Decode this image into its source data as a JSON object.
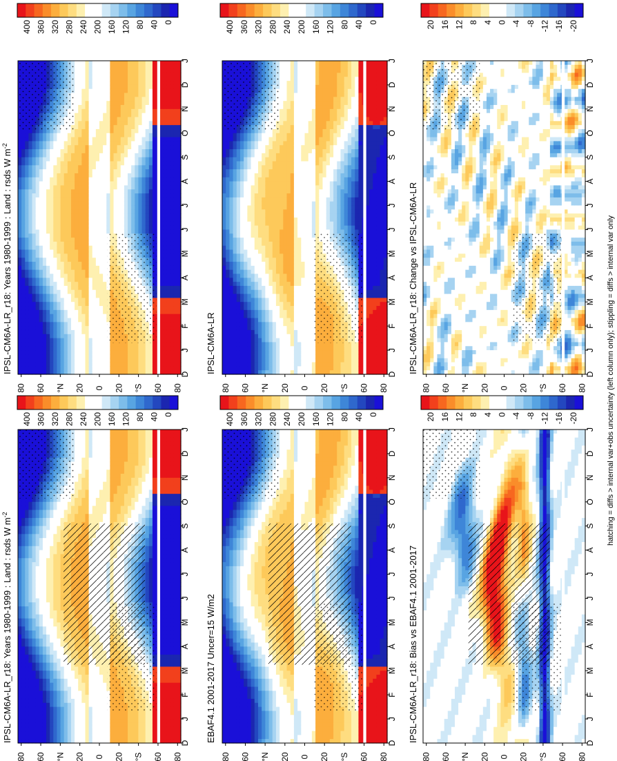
{
  "figure": {
    "footnote": "hatching = diffs > internal var+obs uncertainty (left column only); stippling = diffs > internal var only"
  },
  "chart_data": [
    {
      "type": "heatmap",
      "id": "model-left",
      "title": "IPSL-CM6A-LR_r18: Years 1980-1999 : Land : rsds W m",
      "title_superscript": "-2",
      "x": [
        "D",
        "J",
        "F",
        "M",
        "A",
        "M",
        "J",
        "J",
        "A",
        "S",
        "O",
        "N",
        "D",
        "J"
      ],
      "y": [
        "80",
        "60",
        "°N",
        "20",
        "0",
        "20",
        "°S",
        "60",
        "80"
      ],
      "colorbar": [
        "400",
        "360",
        "320",
        "280",
        "240",
        "200",
        "160",
        "120",
        "80",
        "40",
        "0"
      ],
      "value_range": [
        0,
        420
      ],
      "hatching": true,
      "stippling": true
    },
    {
      "type": "heatmap",
      "id": "obs",
      "title": "EBAF4.1 2001-2017 Uncer=15 W/m2",
      "x": [
        "D",
        "J",
        "F",
        "M",
        "A",
        "M",
        "J",
        "J",
        "A",
        "S",
        "O",
        "N",
        "D",
        "J"
      ],
      "y": [
        "80",
        "60",
        "°N",
        "20",
        "0",
        "20",
        "°S",
        "60",
        "80"
      ],
      "colorbar": [
        "400",
        "360",
        "320",
        "280",
        "240",
        "200",
        "160",
        "120",
        "80",
        "40",
        "0"
      ],
      "value_range": [
        0,
        420
      ],
      "hatching": true,
      "stippling": true
    },
    {
      "type": "heatmap",
      "id": "bias",
      "title": "IPSL-CM6A-LR_r18: Bias vs EBAF4.1 2001-2017",
      "x": [
        "D",
        "J",
        "F",
        "M",
        "A",
        "M",
        "J",
        "J",
        "A",
        "S",
        "O",
        "N",
        "D",
        "J"
      ],
      "y": [
        "80",
        "60",
        "°N",
        "20",
        "0",
        "20",
        "°S",
        "60",
        "80"
      ],
      "colorbar": [
        "20",
        "16",
        "12",
        "8",
        "4",
        "0",
        "-4",
        "-8",
        "-12",
        "-16",
        "-20"
      ],
      "value_range": [
        -22,
        22
      ],
      "hatching": true,
      "stippling": true
    },
    {
      "type": "heatmap",
      "id": "model-right",
      "title": "IPSL-CM6A-LR_r18: Years 1980-1999 : Land : rsds W m",
      "title_superscript": "-2",
      "x": [
        "D",
        "J",
        "F",
        "M",
        "A",
        "M",
        "J",
        "J",
        "A",
        "S",
        "O",
        "N",
        "D",
        "J"
      ],
      "y": [
        "80",
        "60",
        "°N",
        "20",
        "0",
        "20",
        "°S",
        "60",
        "80"
      ],
      "colorbar": [
        "400",
        "360",
        "320",
        "280",
        "240",
        "200",
        "160",
        "120",
        "80",
        "40",
        "0"
      ],
      "value_range": [
        0,
        420
      ],
      "hatching": false,
      "stippling": true
    },
    {
      "type": "heatmap",
      "id": "ref",
      "title": "IPSL-CM6A-LR",
      "x": [
        "D",
        "J",
        "F",
        "M",
        "A",
        "M",
        "J",
        "J",
        "A",
        "S",
        "O",
        "N",
        "D",
        "J"
      ],
      "y": [
        "80",
        "60",
        "°N",
        "20",
        "0",
        "20",
        "°S",
        "60",
        "80"
      ],
      "colorbar": [
        "400",
        "360",
        "320",
        "280",
        "240",
        "200",
        "160",
        "120",
        "80",
        "40",
        "0"
      ],
      "value_range": [
        0,
        420
      ],
      "hatching": false,
      "stippling": true
    },
    {
      "type": "heatmap",
      "id": "change",
      "title": "IPSL-CM6A-LR_r18: Change vs IPSL-CM6A-LR",
      "x": [
        "D",
        "J",
        "F",
        "M",
        "A",
        "M",
        "J",
        "J",
        "A",
        "S",
        "O",
        "N",
        "D",
        "J"
      ],
      "y": [
        "80",
        "60",
        "°N",
        "20",
        "0",
        "20",
        "°S",
        "60",
        "80"
      ],
      "colorbar": [
        "20",
        "16",
        "12",
        "8",
        "4",
        "0",
        "-4",
        "-8",
        "-12",
        "-16",
        "-20"
      ],
      "value_range": [
        -22,
        22
      ],
      "hatching": false,
      "stippling": true
    }
  ],
  "palette": {
    "diverging": [
      "#e8141a",
      "#f2401c",
      "#f7671f",
      "#fa8d2a",
      "#fcae3d",
      "#fdc95a",
      "#fedd80",
      "#fef0b0",
      "#ffffff",
      "#ffffff",
      "#cfe8f7",
      "#a6d3f1",
      "#7dbdea",
      "#58a4e2",
      "#3e86d8",
      "#2f68cd",
      "#2347bf",
      "#1b26b0",
      "#1a10d8"
    ]
  }
}
